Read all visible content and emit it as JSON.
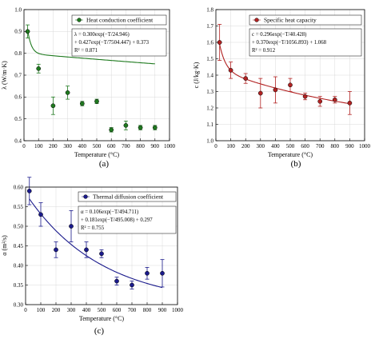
{
  "chart_data": [
    {
      "type": "scatter",
      "panel_label": "(a)",
      "xlabel": "Temperature (°C)",
      "ylabel": "λ (W/m·K)",
      "xlim": [
        0,
        1000
      ],
      "ylim": [
        0.4,
        1.0
      ],
      "x_ticks": [
        0,
        100,
        200,
        300,
        400,
        500,
        600,
        700,
        800,
        900,
        1000
      ],
      "y_ticks": [
        0.4,
        0.5,
        0.6,
        0.7,
        0.8,
        0.9,
        1.0
      ],
      "y_tick_labels": [
        "0.4",
        "0.5",
        "0.6",
        "0.7",
        "0.8",
        "0.9",
        "1.0"
      ],
      "grid": true,
      "legend_position": "top-right",
      "color": "#1f7a1f",
      "series": [
        {
          "name": "Heat conduction coefficient",
          "x": [
            25,
            100,
            200,
            300,
            400,
            500,
            600,
            700,
            800,
            900
          ],
          "y": [
            0.9,
            0.73,
            0.56,
            0.62,
            0.57,
            0.58,
            0.45,
            0.47,
            0.46,
            0.46
          ],
          "err": [
            0.03,
            0.02,
            0.04,
            0.03,
            0.01,
            0.01,
            0.01,
            0.02,
            0.01,
            0.01
          ]
        }
      ],
      "fit": {
        "A": 0.3,
        "t1": 24.946,
        "B": 0.427,
        "t2": 7504.447,
        "C": 0.373
      },
      "equation_lines": [
        "λ = 0.300exp(−T/24.946)",
        "+ 0.427exp(−T/7504.447) + 0.373",
        "R² = 0.871"
      ]
    },
    {
      "type": "scatter",
      "panel_label": "(b)",
      "xlabel": "Temperature (°C)",
      "ylabel": "c (J/kg·K)",
      "xlim": [
        0,
        1000
      ],
      "ylim": [
        1.0,
        1.8
      ],
      "x_ticks": [
        0,
        100,
        200,
        300,
        400,
        500,
        600,
        700,
        800,
        900,
        1000
      ],
      "y_ticks": [
        1.0,
        1.1,
        1.2,
        1.3,
        1.4,
        1.5,
        1.6,
        1.7,
        1.8
      ],
      "y_tick_labels": [
        "1.0",
        "1.1",
        "1.2",
        "1.3",
        "1.4",
        "1.5",
        "1.6",
        "1.7",
        "1.8"
      ],
      "grid": true,
      "legend_position": "top-right",
      "color": "#b22222",
      "series": [
        {
          "name": "Specific heat capacity",
          "x": [
            25,
            100,
            200,
            300,
            400,
            500,
            600,
            700,
            800,
            900
          ],
          "y": [
            1.6,
            1.43,
            1.38,
            1.29,
            1.31,
            1.34,
            1.27,
            1.24,
            1.25,
            1.23
          ],
          "err": [
            0.11,
            0.05,
            0.03,
            0.09,
            0.08,
            0.04,
            0.02,
            0.03,
            0.02,
            0.07
          ]
        }
      ],
      "fit": {
        "A": 0.296,
        "t1": 40.428,
        "B": 0.37,
        "t2": 1056.893,
        "C": 1.068
      },
      "equation_lines": [
        "c = 0.296exp(−T/40.428)",
        "+ 0.370exp(−T/1056.893) + 1.068",
        "R² = 0.912"
      ]
    },
    {
      "type": "scatter",
      "panel_label": "(c)",
      "xlabel": "Temperature (°C)",
      "ylabel": "α (m²/s)",
      "xlim": [
        0,
        1000
      ],
      "ylim": [
        0.3,
        0.6
      ],
      "x_ticks": [
        0,
        100,
        200,
        300,
        400,
        500,
        600,
        700,
        800,
        900,
        1000
      ],
      "y_ticks": [
        0.3,
        0.35,
        0.4,
        0.45,
        0.5,
        0.55,
        0.6
      ],
      "y_tick_labels": [
        "0.30",
        "0.35",
        "0.40",
        "0.45",
        "0.50",
        "0.55",
        "0.60"
      ],
      "grid": true,
      "legend_position": "top-right",
      "color": "#1a1a8c",
      "series": [
        {
          "name": "Thermal diffusion coefficient",
          "x": [
            25,
            100,
            200,
            300,
            400,
            500,
            600,
            700,
            800,
            900
          ],
          "y": [
            0.59,
            0.53,
            0.44,
            0.5,
            0.44,
            0.43,
            0.36,
            0.35,
            0.38,
            0.38
          ],
          "err": [
            0.035,
            0.03,
            0.02,
            0.04,
            0.02,
            0.01,
            0.01,
            0.01,
            0.015,
            0.035
          ]
        }
      ],
      "fit": {
        "A": 0.106,
        "t1": 494.711,
        "B": 0.181,
        "t2": 495.008,
        "C": 0.297
      },
      "equation_lines": [
        "α = 0.106exp(−T/494.711)",
        "+ 0.181exp(−T/495.008) + 0.297",
        "R² = 0.755"
      ]
    }
  ]
}
